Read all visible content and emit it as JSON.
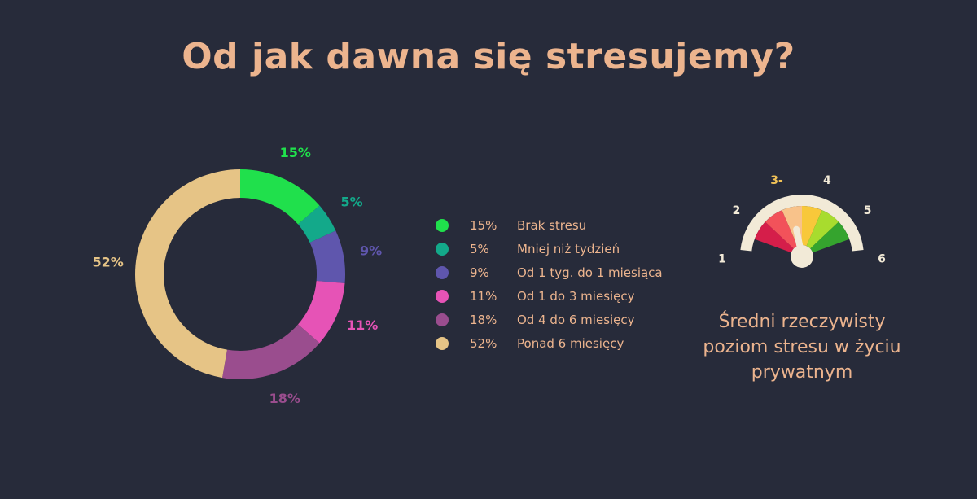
{
  "title": "Od jak dawna się stresujemy?",
  "chart_data": [
    {
      "type": "pie",
      "title": "",
      "series": [
        {
          "label": "Brak stresu",
          "value": 15,
          "value_label": "15%",
          "color": "#20e04c"
        },
        {
          "label": "Mniej niż tydzień",
          "value": 5,
          "value_label": "5%",
          "color": "#13a98a"
        },
        {
          "label": "Od 1 tyg. do 1 miesiąca",
          "value": 9,
          "value_label": "9%",
          "color": "#5f56ad"
        },
        {
          "label": "Od 1 do 3 miesięcy",
          "value": 11,
          "value_label": "11%",
          "color": "#e653b6"
        },
        {
          "label": "Od 4 do 6 miesięcy",
          "value": 18,
          "value_label": "18%",
          "color": "#9a4d8e"
        },
        {
          "label": "Ponad 6 miesięcy",
          "value": 52,
          "value_label": "52%",
          "color": "#e6c486"
        }
      ],
      "legend_placement": "right"
    }
  ],
  "gauge": {
    "scale_labels": [
      "1",
      "2",
      "3-",
      "4",
      "5",
      "6"
    ],
    "highlighted_label": "3-",
    "value": 3,
    "segment_colors": [
      "#d51e4a",
      "#f2525a",
      "#f8c28a",
      "#f8c83a",
      "#a8dc2e",
      "#35a42e"
    ],
    "caption": "Średni rzeczywisty poziom stresu w życiu prywatnym",
    "text_color": "#ecb48e",
    "highlight_color": "#f1c257"
  },
  "colors": {
    "background": "#272b3a",
    "accent": "#ecb48e"
  }
}
